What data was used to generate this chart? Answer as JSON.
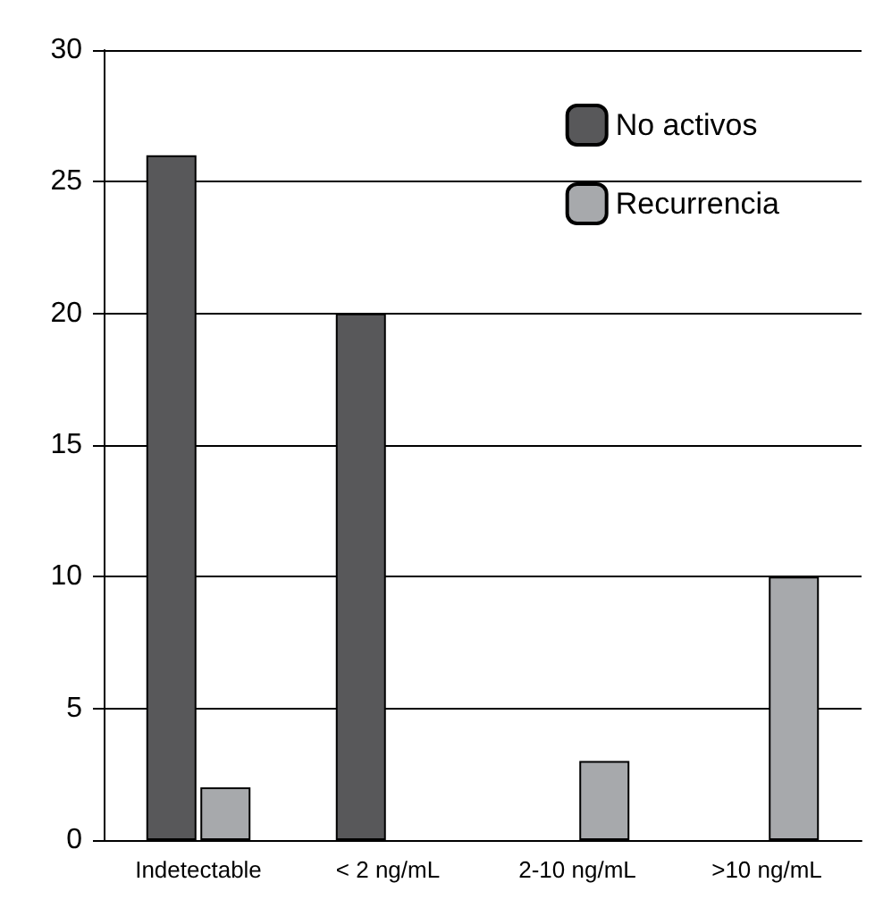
{
  "chart_data": {
    "type": "bar",
    "categories": [
      "Indetectable",
      "< 2 ng/mL",
      "2-10 ng/mL",
      ">10 ng/mL"
    ],
    "series": [
      {
        "name": "No activos",
        "color": "#58585a",
        "values": [
          26,
          20,
          null,
          null
        ]
      },
      {
        "name": "Recurrencia",
        "color": "#a7a9ac",
        "values": [
          2,
          null,
          3,
          10
        ]
      }
    ],
    "ylim": [
      0,
      30
    ],
    "yticks": [
      0,
      5,
      10,
      15,
      20,
      25,
      30
    ],
    "grid": "y",
    "legend": "top right"
  }
}
